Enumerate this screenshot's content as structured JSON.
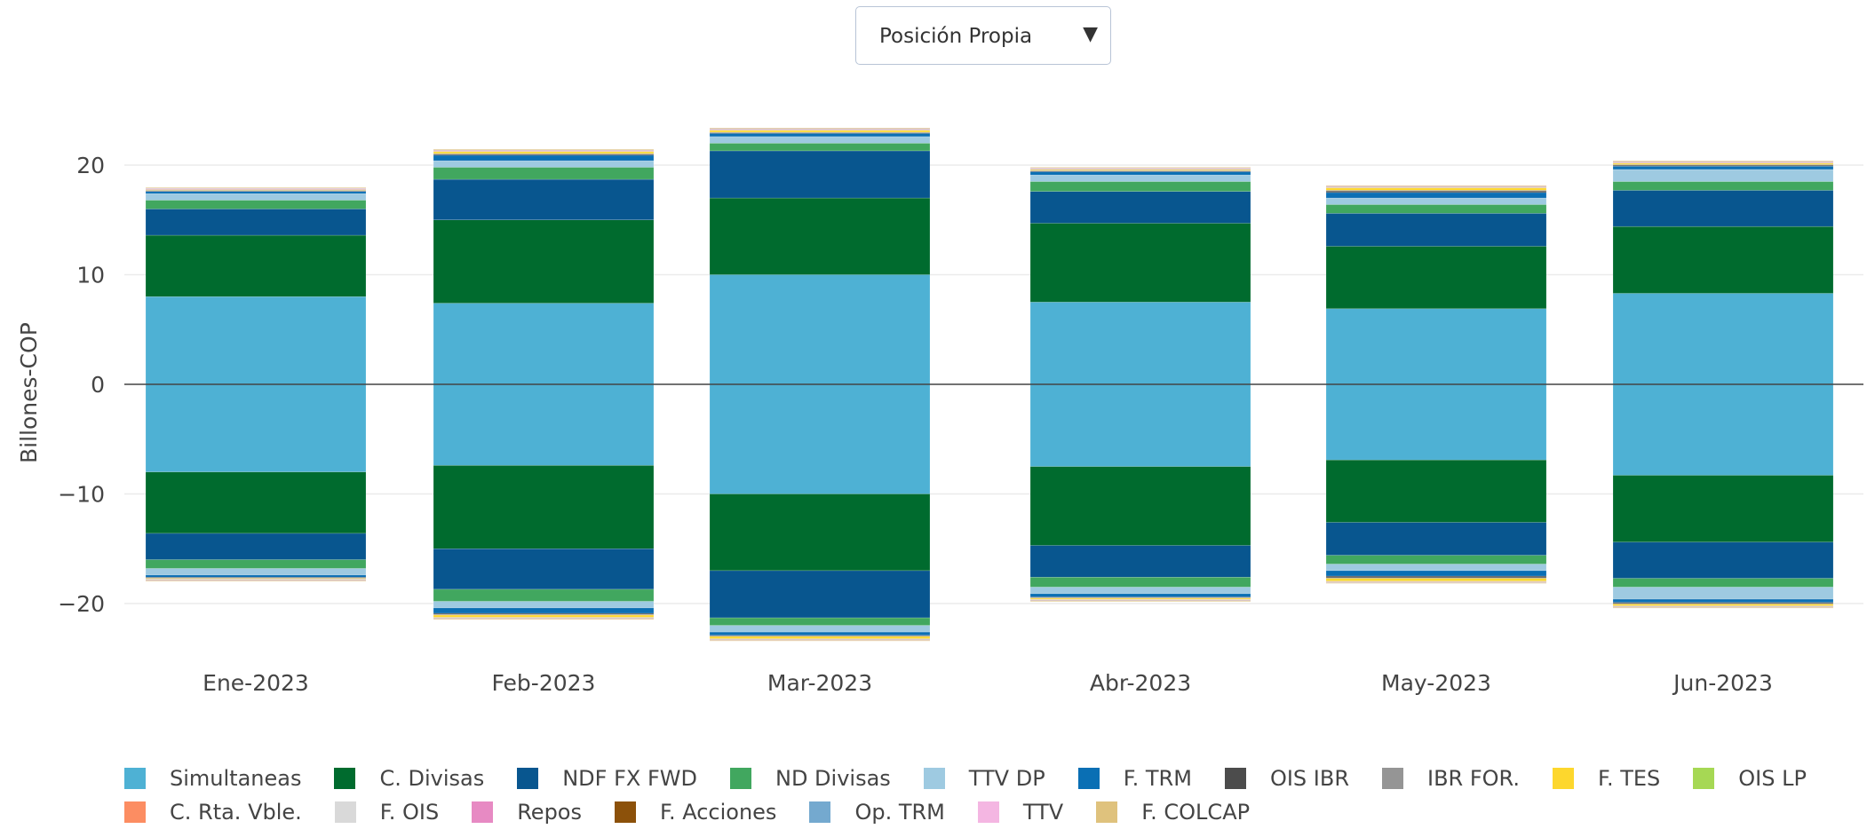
{
  "dropdown": {
    "selected": "Posición Propia",
    "arrow": "▼"
  },
  "chart_data": {
    "type": "bar",
    "stacked": true,
    "ylabel": "Billones-COP",
    "ylim": [
      -24,
      25
    ],
    "yticks": [
      20,
      10,
      0,
      -10,
      -20
    ],
    "ytick_labels": [
      "20",
      "10",
      "0",
      "−10",
      "−20"
    ],
    "categories": [
      "Ene-2023",
      "Feb-2023",
      "Mar-2023",
      "Abr-2023",
      "May-2023",
      "Jun-2023"
    ],
    "grid": true,
    "legend_position": "bottom",
    "series": [
      {
        "name": "Simultaneas",
        "color": "#4eb1d4",
        "pos": [
          8.0,
          7.4,
          10.0,
          7.5,
          6.9,
          8.3
        ],
        "neg": [
          -8.0,
          -7.4,
          -10.0,
          -7.5,
          -6.9,
          -8.3
        ]
      },
      {
        "name": "C. Divisas",
        "color": "#006b2e",
        "pos": [
          5.6,
          7.6,
          7.0,
          7.2,
          5.7,
          6.1
        ],
        "neg": [
          -5.6,
          -7.6,
          -7.0,
          -7.2,
          -5.7,
          -6.1
        ]
      },
      {
        "name": "NDF FX FWD",
        "color": "#08568f",
        "pos": [
          2.4,
          3.7,
          4.3,
          2.9,
          3.0,
          3.3
        ],
        "neg": [
          -2.4,
          -3.7,
          -4.3,
          -2.9,
          -3.0,
          -3.3
        ]
      },
      {
        "name": "ND Divisas",
        "color": "#41a75f",
        "pos": [
          0.8,
          1.1,
          0.7,
          0.9,
          0.8,
          0.8
        ],
        "neg": [
          -0.8,
          -1.1,
          -0.7,
          -0.9,
          -0.8,
          -0.8
        ]
      },
      {
        "name": "TTV DP",
        "color": "#9ecae1",
        "pos": [
          0.6,
          0.6,
          0.6,
          0.6,
          0.6,
          1.1
        ],
        "neg": [
          -0.6,
          -0.6,
          -0.6,
          -0.6,
          -0.6,
          -1.1
        ]
      },
      {
        "name": "F. TRM",
        "color": "#0a6fb4",
        "pos": [
          0.2,
          0.5,
          0.3,
          0.3,
          0.5,
          0.3
        ],
        "neg": [
          -0.2,
          -0.5,
          -0.3,
          -0.3,
          -0.5,
          -0.3
        ]
      },
      {
        "name": "OIS IBR",
        "color": "#4c4c4c",
        "pos": [
          0.05,
          0.1,
          0.05,
          0.05,
          0.15,
          0.1
        ],
        "neg": [
          -0.05,
          -0.1,
          -0.05,
          -0.05,
          -0.15,
          -0.1
        ]
      },
      {
        "name": "IBR FOR.",
        "color": "#959595",
        "pos": [
          0.05,
          0.05,
          0.05,
          0.05,
          0.05,
          0.05
        ],
        "neg": [
          -0.05,
          -0.05,
          -0.05,
          -0.05,
          -0.05,
          -0.05
        ]
      },
      {
        "name": "F. TES",
        "color": "#fdd72d",
        "pos": [
          0.05,
          0.2,
          0.2,
          0.1,
          0.25,
          0.15
        ],
        "neg": [
          -0.05,
          -0.2,
          -0.2,
          -0.1,
          -0.25,
          -0.15
        ]
      },
      {
        "name": "OIS LP",
        "color": "#a6d854",
        "pos": [
          0.02,
          0.02,
          0.02,
          0.02,
          0.02,
          0.02
        ],
        "neg": [
          -0.02,
          -0.02,
          -0.02,
          -0.02,
          -0.02,
          -0.02
        ]
      },
      {
        "name": "C. Rta. Vble.",
        "color": "#fc8d62",
        "pos": [
          0.02,
          0.02,
          0.02,
          0.02,
          0.02,
          0.02
        ],
        "neg": [
          -0.02,
          -0.02,
          -0.02,
          -0.02,
          -0.02,
          -0.02
        ]
      },
      {
        "name": "F. OIS",
        "color": "#d9d9d9",
        "pos": [
          0.03,
          0.03,
          0.03,
          0.03,
          0.03,
          0.03
        ],
        "neg": [
          -0.03,
          -0.03,
          -0.03,
          -0.03,
          -0.03,
          -0.03
        ]
      },
      {
        "name": "Repos",
        "color": "#e78ac3",
        "pos": [
          0.02,
          0.02,
          0.02,
          0.02,
          0.02,
          0.02
        ],
        "neg": [
          -0.02,
          -0.02,
          -0.02,
          -0.02,
          -0.02,
          -0.02
        ]
      },
      {
        "name": "F. Acciones",
        "color": "#8c510a",
        "pos": [
          0.02,
          0.02,
          0.02,
          0.02,
          0.02,
          0.02
        ],
        "neg": [
          -0.02,
          -0.02,
          -0.02,
          -0.02,
          -0.02,
          -0.02
        ]
      },
      {
        "name": "Op. TRM",
        "color": "#74a9cf",
        "pos": [
          0.02,
          0.02,
          0.02,
          0.02,
          0.02,
          0.02
        ],
        "neg": [
          -0.02,
          -0.02,
          -0.02,
          -0.02,
          -0.02,
          -0.02
        ]
      },
      {
        "name": "TTV",
        "color": "#f4b6e2",
        "pos": [
          0.02,
          0.02,
          0.02,
          0.02,
          0.02,
          0.02
        ],
        "neg": [
          -0.02,
          -0.02,
          -0.02,
          -0.02,
          -0.02,
          -0.02
        ]
      },
      {
        "name": "F. COLCAP",
        "color": "#dfc27d",
        "pos": [
          0.05,
          0.05,
          0.05,
          0.05,
          0.05,
          0.05
        ],
        "neg": [
          -0.05,
          -0.05,
          -0.05,
          -0.05,
          -0.05,
          -0.05
        ]
      }
    ]
  }
}
